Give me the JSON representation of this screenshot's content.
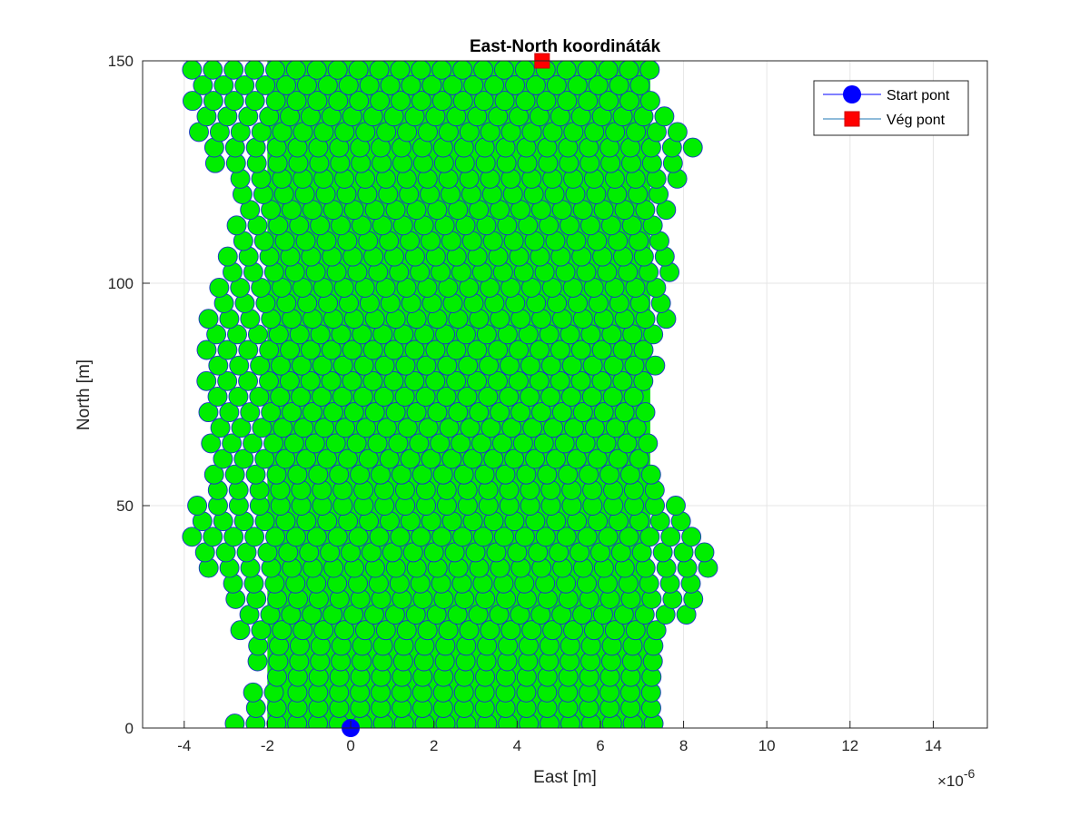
{
  "chart_data": {
    "type": "scatter",
    "title": "East-North koordináták",
    "xlabel": "East [m]",
    "ylabel": "North [m]",
    "x_exponent_label": "×10",
    "x_exponent_power": "-6",
    "xlim": [
      -5e-06,
      1.53e-05
    ],
    "ylim": [
      0,
      150
    ],
    "xticks": [
      -4e-06,
      -2e-06,
      0,
      2e-06,
      4e-06,
      6e-06,
      8e-06,
      1e-05,
      1.2e-05,
      1.4e-05
    ],
    "xtick_labels": [
      "-4",
      "-2",
      "0",
      "2",
      "4",
      "6",
      "8",
      "10",
      "12",
      "14"
    ],
    "yticks": [
      0,
      50,
      100,
      150
    ],
    "ytick_labels": [
      "0",
      "50",
      "100",
      "150"
    ],
    "grid": true,
    "legend_location": "top-right",
    "track_color": "#00ee00",
    "track_edge_color": "#1f2fcc",
    "track_region": {
      "north": [
        0,
        150
      ],
      "east_min_1e6": [
        -2.8,
        -2.0,
        -2.6,
        -2.8,
        -3.8,
        -3.8,
        -3.3,
        -3.4,
        -3.5,
        -2.8,
        -2.6,
        -3.5,
        -3.8,
        -3.8
      ],
      "east_max_1e6": [
        7.6,
        7.6,
        7.6,
        8.6,
        8.6,
        8.0,
        7.4,
        7.2,
        7.6,
        7.8,
        7.5,
        8.5,
        7.6,
        7.2
      ],
      "east_profile_north": [
        0,
        12,
        20,
        30,
        40,
        48,
        56,
        70,
        90,
        110,
        120,
        130,
        140,
        150
      ]
    },
    "series": [
      {
        "name": "Start pont",
        "marker": "circle",
        "color": "#0000ff",
        "x": [
          0
        ],
        "y": [
          0
        ]
      },
      {
        "name": "Vég pont",
        "marker": "square",
        "color": "#ff0000",
        "x": [
          4.6e-06
        ],
        "y": [
          150
        ]
      }
    ]
  }
}
